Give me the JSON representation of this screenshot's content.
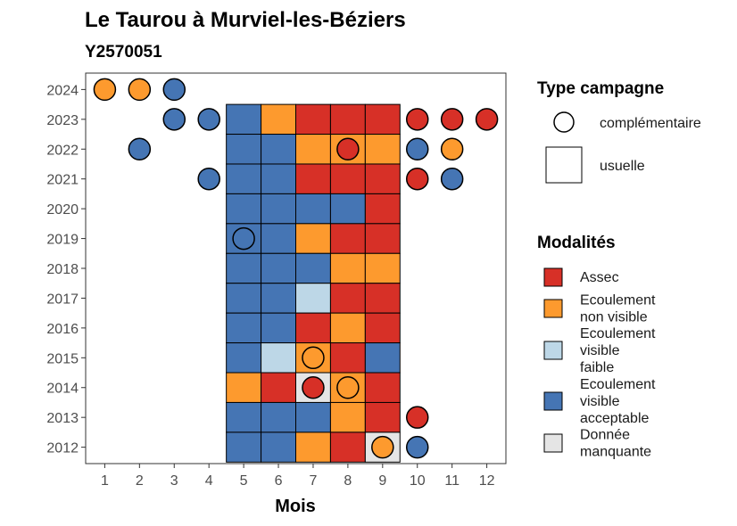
{
  "chart_data": {
    "type": "heatmap",
    "title": "Le Taurou à Murviel-les-Béziers",
    "subtitle": "Y2570051",
    "xlabel": "Mois",
    "ylabel": "",
    "x_categories": [
      "1",
      "2",
      "3",
      "4",
      "5",
      "6",
      "7",
      "8",
      "9",
      "10",
      "11",
      "12"
    ],
    "y_categories": [
      "2012",
      "2013",
      "2014",
      "2015",
      "2016",
      "2017",
      "2018",
      "2019",
      "2020",
      "2021",
      "2022",
      "2023",
      "2024"
    ],
    "modality_colors": {
      "Assec": "#d73027",
      "Ecoulement non visible": "#fd9a2e",
      "Ecoulement visible faible": "#bdd7e7",
      "Ecoulement visible acceptable": "#4575b4",
      "Donnée manquante": "#e5e5e5"
    },
    "usuelle": [
      {
        "year": "2023",
        "month": 5,
        "modality": "Ecoulement visible acceptable"
      },
      {
        "year": "2023",
        "month": 6,
        "modality": "Ecoulement non visible"
      },
      {
        "year": "2023",
        "month": 7,
        "modality": "Assec"
      },
      {
        "year": "2023",
        "month": 8,
        "modality": "Assec"
      },
      {
        "year": "2023",
        "month": 9,
        "modality": "Assec"
      },
      {
        "year": "2022",
        "month": 5,
        "modality": "Ecoulement visible acceptable"
      },
      {
        "year": "2022",
        "month": 6,
        "modality": "Ecoulement visible acceptable"
      },
      {
        "year": "2022",
        "month": 7,
        "modality": "Ecoulement non visible"
      },
      {
        "year": "2022",
        "month": 8,
        "modality": "Ecoulement non visible"
      },
      {
        "year": "2022",
        "month": 9,
        "modality": "Ecoulement non visible"
      },
      {
        "year": "2021",
        "month": 5,
        "modality": "Ecoulement visible acceptable"
      },
      {
        "year": "2021",
        "month": 6,
        "modality": "Ecoulement visible acceptable"
      },
      {
        "year": "2021",
        "month": 7,
        "modality": "Assec"
      },
      {
        "year": "2021",
        "month": 8,
        "modality": "Assec"
      },
      {
        "year": "2021",
        "month": 9,
        "modality": "Assec"
      },
      {
        "year": "2020",
        "month": 5,
        "modality": "Ecoulement visible acceptable"
      },
      {
        "year": "2020",
        "month": 6,
        "modality": "Ecoulement visible acceptable"
      },
      {
        "year": "2020",
        "month": 7,
        "modality": "Ecoulement visible acceptable"
      },
      {
        "year": "2020",
        "month": 8,
        "modality": "Ecoulement visible acceptable"
      },
      {
        "year": "2020",
        "month": 9,
        "modality": "Assec"
      },
      {
        "year": "2019",
        "month": 5,
        "modality": "Ecoulement visible acceptable"
      },
      {
        "year": "2019",
        "month": 6,
        "modality": "Ecoulement visible acceptable"
      },
      {
        "year": "2019",
        "month": 7,
        "modality": "Ecoulement non visible"
      },
      {
        "year": "2019",
        "month": 8,
        "modality": "Assec"
      },
      {
        "year": "2019",
        "month": 9,
        "modality": "Assec"
      },
      {
        "year": "2018",
        "month": 5,
        "modality": "Ecoulement visible acceptable"
      },
      {
        "year": "2018",
        "month": 6,
        "modality": "Ecoulement visible acceptable"
      },
      {
        "year": "2018",
        "month": 7,
        "modality": "Ecoulement visible acceptable"
      },
      {
        "year": "2018",
        "month": 8,
        "modality": "Ecoulement non visible"
      },
      {
        "year": "2018",
        "month": 9,
        "modality": "Ecoulement non visible"
      },
      {
        "year": "2017",
        "month": 5,
        "modality": "Ecoulement visible acceptable"
      },
      {
        "year": "2017",
        "month": 6,
        "modality": "Ecoulement visible acceptable"
      },
      {
        "year": "2017",
        "month": 7,
        "modality": "Ecoulement visible faible"
      },
      {
        "year": "2017",
        "month": 8,
        "modality": "Assec"
      },
      {
        "year": "2017",
        "month": 9,
        "modality": "Assec"
      },
      {
        "year": "2016",
        "month": 5,
        "modality": "Ecoulement visible acceptable"
      },
      {
        "year": "2016",
        "month": 6,
        "modality": "Ecoulement visible acceptable"
      },
      {
        "year": "2016",
        "month": 7,
        "modality": "Assec"
      },
      {
        "year": "2016",
        "month": 8,
        "modality": "Ecoulement non visible"
      },
      {
        "year": "2016",
        "month": 9,
        "modality": "Assec"
      },
      {
        "year": "2015",
        "month": 5,
        "modality": "Ecoulement visible acceptable"
      },
      {
        "year": "2015",
        "month": 6,
        "modality": "Ecoulement visible faible"
      },
      {
        "year": "2015",
        "month": 7,
        "modality": "Ecoulement non visible"
      },
      {
        "year": "2015",
        "month": 8,
        "modality": "Assec"
      },
      {
        "year": "2015",
        "month": 9,
        "modality": "Ecoulement visible acceptable"
      },
      {
        "year": "2014",
        "month": 5,
        "modality": "Ecoulement non visible"
      },
      {
        "year": "2014",
        "month": 6,
        "modality": "Assec"
      },
      {
        "year": "2014",
        "month": 7,
        "modality": "Donnée manquante"
      },
      {
        "year": "2014",
        "month": 8,
        "modality": "Ecoulement non visible"
      },
      {
        "year": "2014",
        "month": 9,
        "modality": "Assec"
      },
      {
        "year": "2013",
        "month": 5,
        "modality": "Ecoulement visible acceptable"
      },
      {
        "year": "2013",
        "month": 6,
        "modality": "Ecoulement visible acceptable"
      },
      {
        "year": "2013",
        "month": 7,
        "modality": "Ecoulement visible acceptable"
      },
      {
        "year": "2013",
        "month": 8,
        "modality": "Ecoulement non visible"
      },
      {
        "year": "2013",
        "month": 9,
        "modality": "Assec"
      },
      {
        "year": "2012",
        "month": 5,
        "modality": "Ecoulement visible acceptable"
      },
      {
        "year": "2012",
        "month": 6,
        "modality": "Ecoulement visible acceptable"
      },
      {
        "year": "2012",
        "month": 7,
        "modality": "Ecoulement non visible"
      },
      {
        "year": "2012",
        "month": 8,
        "modality": "Assec"
      },
      {
        "year": "2012",
        "month": 9,
        "modality": "Donnée manquante"
      }
    ],
    "complementaire": [
      {
        "year": "2024",
        "month": 1,
        "modality": "Ecoulement non visible"
      },
      {
        "year": "2024",
        "month": 2,
        "modality": "Ecoulement non visible"
      },
      {
        "year": "2024",
        "month": 3,
        "modality": "Ecoulement visible acceptable"
      },
      {
        "year": "2023",
        "month": 3,
        "modality": "Ecoulement visible acceptable"
      },
      {
        "year": "2023",
        "month": 4,
        "modality": "Ecoulement visible acceptable"
      },
      {
        "year": "2023",
        "month": 10,
        "modality": "Assec"
      },
      {
        "year": "2023",
        "month": 11,
        "modality": "Assec"
      },
      {
        "year": "2023",
        "month": 12,
        "modality": "Assec"
      },
      {
        "year": "2022",
        "month": 2,
        "modality": "Ecoulement visible acceptable"
      },
      {
        "year": "2022",
        "month": 8,
        "modality": "Assec"
      },
      {
        "year": "2022",
        "month": 10,
        "modality": "Ecoulement visible acceptable"
      },
      {
        "year": "2022",
        "month": 11,
        "modality": "Ecoulement non visible"
      },
      {
        "year": "2021",
        "month": 4,
        "modality": "Ecoulement visible acceptable"
      },
      {
        "year": "2021",
        "month": 10,
        "modality": "Assec"
      },
      {
        "year": "2021",
        "month": 11,
        "modality": "Ecoulement visible acceptable"
      },
      {
        "year": "2019",
        "month": 5,
        "modality": "Ecoulement visible acceptable"
      },
      {
        "year": "2015",
        "month": 7,
        "modality": "Ecoulement non visible"
      },
      {
        "year": "2014",
        "month": 7,
        "modality": "Assec"
      },
      {
        "year": "2014",
        "month": 8,
        "modality": "Ecoulement non visible"
      },
      {
        "year": "2013",
        "month": 10,
        "modality": "Assec"
      },
      {
        "year": "2012",
        "month": 9,
        "modality": "Ecoulement non visible"
      },
      {
        "year": "2012",
        "month": 10,
        "modality": "Ecoulement visible acceptable"
      }
    ],
    "legend_type": {
      "title": "Type campagne",
      "items": [
        "complémentaire",
        "usuelle"
      ]
    },
    "legend_modalities": {
      "title": "Modalités",
      "items": [
        {
          "lines": [
            "Assec"
          ],
          "color": "#d73027"
        },
        {
          "lines": [
            "Ecoulement",
            "non visible"
          ],
          "color": "#fd9a2e"
        },
        {
          "lines": [
            "Ecoulement",
            "visible",
            "faible"
          ],
          "color": "#bdd7e7"
        },
        {
          "lines": [
            "Ecoulement",
            "visible",
            "acceptable"
          ],
          "color": "#4575b4"
        },
        {
          "lines": [
            "Donnée",
            "manquante"
          ],
          "color": "#e5e5e5"
        }
      ]
    }
  }
}
